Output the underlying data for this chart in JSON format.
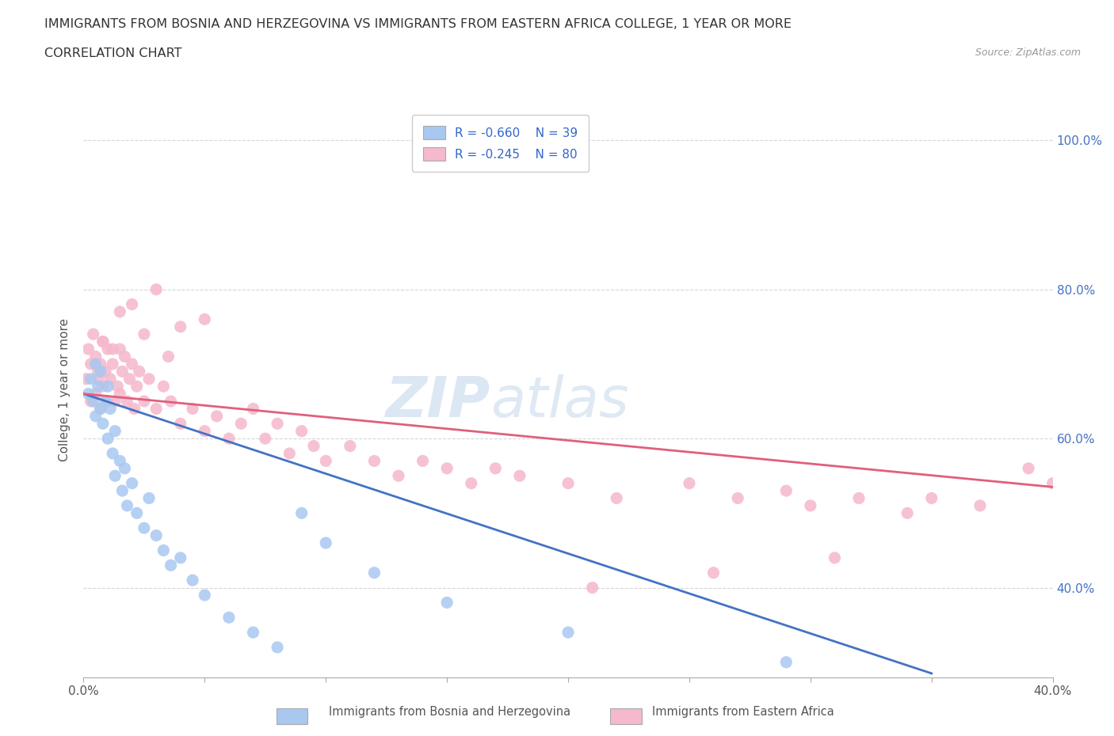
{
  "title_line1": "IMMIGRANTS FROM BOSNIA AND HERZEGOVINA VS IMMIGRANTS FROM EASTERN AFRICA COLLEGE, 1 YEAR OR MORE",
  "title_line2": "CORRELATION CHART",
  "source_text": "Source: ZipAtlas.com",
  "ylabel": "College, 1 year or more",
  "xlim": [
    0.0,
    0.4
  ],
  "ylim": [
    0.28,
    1.05
  ],
  "xtick_labels": [
    "0.0%",
    "",
    "",
    "",
    "",
    "",
    "",
    "",
    "40.0%"
  ],
  "xtick_vals": [
    0.0,
    0.05,
    0.1,
    0.15,
    0.2,
    0.25,
    0.3,
    0.35,
    0.4
  ],
  "ytick_right_labels": [
    "100.0%",
    "80.0%",
    "60.0%",
    "40.0%"
  ],
  "ytick_right_vals": [
    1.0,
    0.8,
    0.6,
    0.4
  ],
  "legend_r1": "R = -0.660",
  "legend_n1": "N = 39",
  "legend_r2": "R = -0.245",
  "legend_n2": "N = 80",
  "color_bosnia": "#a8c8f0",
  "color_eastern": "#f5b8cc",
  "line_color_bosnia": "#4472c4",
  "line_color_eastern": "#e0607a",
  "watermark": "ZIPatlas",
  "background_color": "#ffffff",
  "grid_color": "#cccccc",
  "bosnia_x": [
    0.002,
    0.003,
    0.004,
    0.005,
    0.005,
    0.006,
    0.007,
    0.007,
    0.008,
    0.009,
    0.01,
    0.01,
    0.011,
    0.012,
    0.013,
    0.013,
    0.015,
    0.016,
    0.017,
    0.018,
    0.02,
    0.022,
    0.025,
    0.027,
    0.03,
    0.033,
    0.036,
    0.04,
    0.045,
    0.05,
    0.06,
    0.07,
    0.08,
    0.09,
    0.1,
    0.12,
    0.15,
    0.2,
    0.29
  ],
  "bosnia_y": [
    0.66,
    0.68,
    0.65,
    0.7,
    0.63,
    0.67,
    0.64,
    0.69,
    0.62,
    0.65,
    0.67,
    0.6,
    0.64,
    0.58,
    0.61,
    0.55,
    0.57,
    0.53,
    0.56,
    0.51,
    0.54,
    0.5,
    0.48,
    0.52,
    0.47,
    0.45,
    0.43,
    0.44,
    0.41,
    0.39,
    0.36,
    0.34,
    0.32,
    0.5,
    0.46,
    0.42,
    0.38,
    0.34,
    0.3
  ],
  "eastern_x": [
    0.001,
    0.002,
    0.003,
    0.003,
    0.004,
    0.005,
    0.005,
    0.006,
    0.007,
    0.007,
    0.008,
    0.008,
    0.009,
    0.01,
    0.01,
    0.011,
    0.012,
    0.013,
    0.014,
    0.015,
    0.015,
    0.016,
    0.017,
    0.018,
    0.019,
    0.02,
    0.021,
    0.022,
    0.023,
    0.025,
    0.027,
    0.03,
    0.033,
    0.036,
    0.04,
    0.045,
    0.05,
    0.055,
    0.06,
    0.065,
    0.07,
    0.075,
    0.08,
    0.085,
    0.09,
    0.095,
    0.1,
    0.11,
    0.12,
    0.13,
    0.14,
    0.15,
    0.16,
    0.17,
    0.18,
    0.2,
    0.22,
    0.25,
    0.27,
    0.29,
    0.3,
    0.32,
    0.34,
    0.35,
    0.37,
    0.39,
    0.4,
    0.21,
    0.26,
    0.31,
    0.02,
    0.03,
    0.04,
    0.05,
    0.015,
    0.012,
    0.008,
    0.006,
    0.025,
    0.035
  ],
  "eastern_y": [
    0.68,
    0.72,
    0.7,
    0.65,
    0.74,
    0.71,
    0.66,
    0.68,
    0.7,
    0.64,
    0.73,
    0.67,
    0.69,
    0.72,
    0.65,
    0.68,
    0.7,
    0.65,
    0.67,
    0.72,
    0.66,
    0.69,
    0.71,
    0.65,
    0.68,
    0.7,
    0.64,
    0.67,
    0.69,
    0.65,
    0.68,
    0.64,
    0.67,
    0.65,
    0.62,
    0.64,
    0.61,
    0.63,
    0.6,
    0.62,
    0.64,
    0.6,
    0.62,
    0.58,
    0.61,
    0.59,
    0.57,
    0.59,
    0.57,
    0.55,
    0.57,
    0.56,
    0.54,
    0.56,
    0.55,
    0.54,
    0.52,
    0.54,
    0.52,
    0.53,
    0.51,
    0.52,
    0.5,
    0.52,
    0.51,
    0.56,
    0.54,
    0.4,
    0.42,
    0.44,
    0.78,
    0.8,
    0.75,
    0.76,
    0.77,
    0.72,
    0.73,
    0.69,
    0.74,
    0.71
  ],
  "bosnia_trend_x": [
    0.0,
    0.35
  ],
  "bosnia_trend_y": [
    0.66,
    0.285
  ],
  "eastern_trend_x": [
    0.0,
    0.4
  ],
  "eastern_trend_y": [
    0.66,
    0.535
  ],
  "bottom_label1": "Immigrants from Bosnia and Herzegovina",
  "bottom_label2": "Immigrants from Eastern Africa"
}
